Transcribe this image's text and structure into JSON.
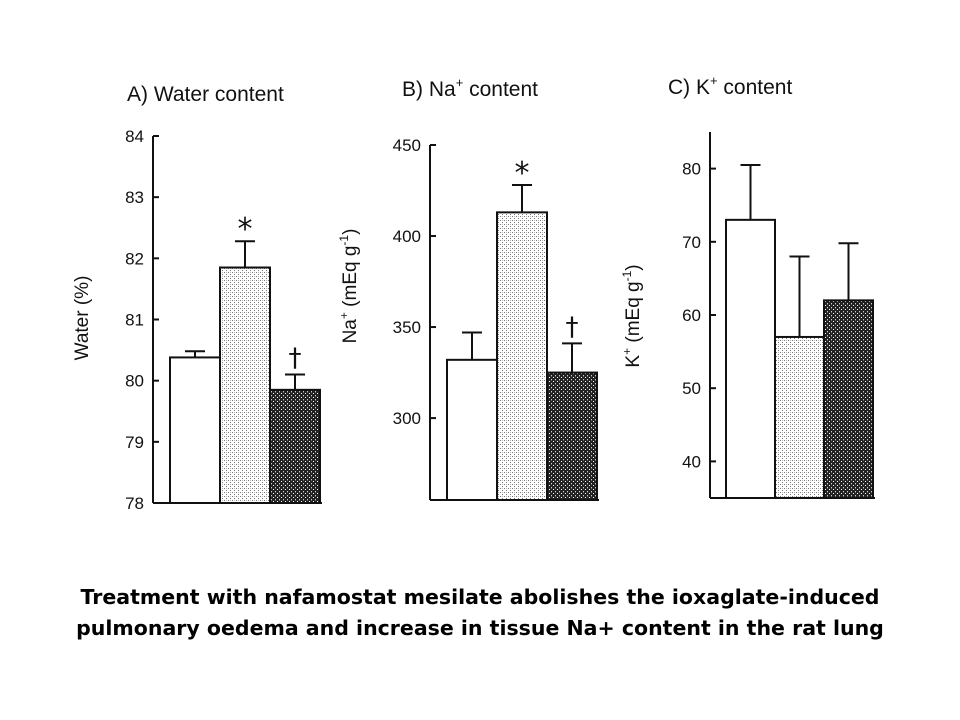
{
  "caption": {
    "line1": "Treatment with nafamostat mesilate abolishes the ioxaglate-induced",
    "line2": "pulmonary oedema and increase in tissue Na+ content in the rat lung"
  },
  "colors": {
    "axis": "#111111",
    "bar_fill_1": "#ffffff",
    "bar_fill_2": "#dcdcdc",
    "bar_fill_3": "#4a4a4a"
  },
  "chart_data": [
    {
      "type": "bar",
      "title_prefix": "A) Water content",
      "title_sup": "",
      "title_suffix": "",
      "ylabel_main": "Water (%)",
      "ylabel_sup": "",
      "ylabel_unit": "",
      "ylabel_unit_sup": "",
      "ylabel_close": "",
      "ylim": [
        78,
        84
      ],
      "yticks": [
        78,
        79,
        80,
        81,
        82,
        83,
        84
      ],
      "grid": false,
      "values": [
        80.38,
        81.85,
        79.85
      ],
      "errors": [
        0.1,
        0.43,
        0.25
      ],
      "annotations": [
        "",
        "*",
        "†"
      ]
    },
    {
      "type": "bar",
      "title_prefix": "B) Na",
      "title_sup": "+",
      "title_suffix": " content",
      "ylabel_main": "Na",
      "ylabel_sup": "+",
      "ylabel_unit": " (mEq g",
      "ylabel_unit_sup": "-1",
      "ylabel_close": ")",
      "ylim": [
        255,
        450
      ],
      "yticks": [
        300,
        350,
        400,
        450
      ],
      "grid": false,
      "values": [
        332,
        413,
        325
      ],
      "errors": [
        15,
        15,
        16
      ],
      "annotations": [
        "",
        "*",
        "†"
      ]
    },
    {
      "type": "bar",
      "title_prefix": "C) K",
      "title_sup": "+",
      "title_suffix": " content",
      "ylabel_main": "K",
      "ylabel_sup": "+",
      "ylabel_unit": " (mEq g",
      "ylabel_unit_sup": "-1",
      "ylabel_close": ")",
      "ylim": [
        35,
        85
      ],
      "yticks": [
        40,
        50,
        60,
        70,
        80
      ],
      "grid": false,
      "values": [
        73,
        57,
        62
      ],
      "errors": [
        7.5,
        11,
        7.8
      ],
      "annotations": [
        "",
        "",
        ""
      ]
    }
  ]
}
